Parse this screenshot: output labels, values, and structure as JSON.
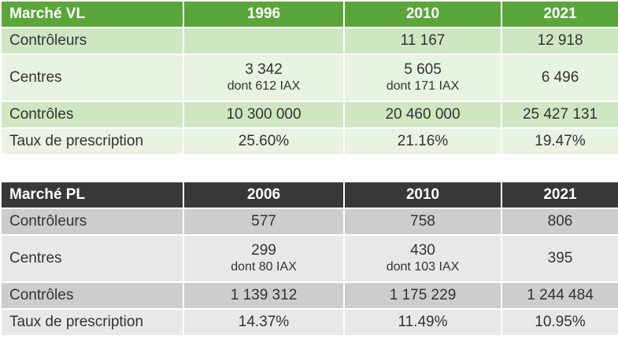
{
  "vl": {
    "title": "Marché VL",
    "years": [
      "1996",
      "2010",
      "2021"
    ],
    "rows": [
      {
        "label": "Contrôleurs",
        "cells": [
          {
            "main": "",
            "sub": ""
          },
          {
            "main": "11 167",
            "sub": ""
          },
          {
            "main": "12 918",
            "sub": ""
          }
        ]
      },
      {
        "label": "Centres",
        "cells": [
          {
            "main": "3 342",
            "sub": "dont 612 IAX"
          },
          {
            "main": "5 605",
            "sub": "dont 171 IAX"
          },
          {
            "main": "6 496",
            "sub": ""
          }
        ]
      },
      {
        "label": "Contrôles",
        "cells": [
          {
            "main": "10 300 000",
            "sub": ""
          },
          {
            "main": "20 460 000",
            "sub": ""
          },
          {
            "main": "25 427 131",
            "sub": ""
          }
        ]
      },
      {
        "label": "Taux de prescription",
        "cells": [
          {
            "main": "25.60%",
            "sub": ""
          },
          {
            "main": "21.16%",
            "sub": ""
          },
          {
            "main": "19.47%",
            "sub": ""
          }
        ]
      }
    ]
  },
  "pl": {
    "title": "Marché PL",
    "years": [
      "2006",
      "2010",
      "2021"
    ],
    "rows": [
      {
        "label": "Contrôleurs",
        "cells": [
          {
            "main": "577",
            "sub": ""
          },
          {
            "main": "758",
            "sub": ""
          },
          {
            "main": "806",
            "sub": ""
          }
        ]
      },
      {
        "label": "Centres",
        "cells": [
          {
            "main": "299",
            "sub": "dont 80 IAX"
          },
          {
            "main": "430",
            "sub": "dont 103 IAX"
          },
          {
            "main": "395",
            "sub": ""
          }
        ]
      },
      {
        "label": "Contrôles",
        "cells": [
          {
            "main": "1 139 312",
            "sub": ""
          },
          {
            "main": "1 175 229",
            "sub": ""
          },
          {
            "main": "1 244 484",
            "sub": ""
          }
        ]
      },
      {
        "label": "Taux de prescription",
        "cells": [
          {
            "main": "14.37%",
            "sub": ""
          },
          {
            "main": "11.49%",
            "sub": ""
          },
          {
            "main": "10.95%",
            "sub": ""
          }
        ]
      }
    ]
  }
}
